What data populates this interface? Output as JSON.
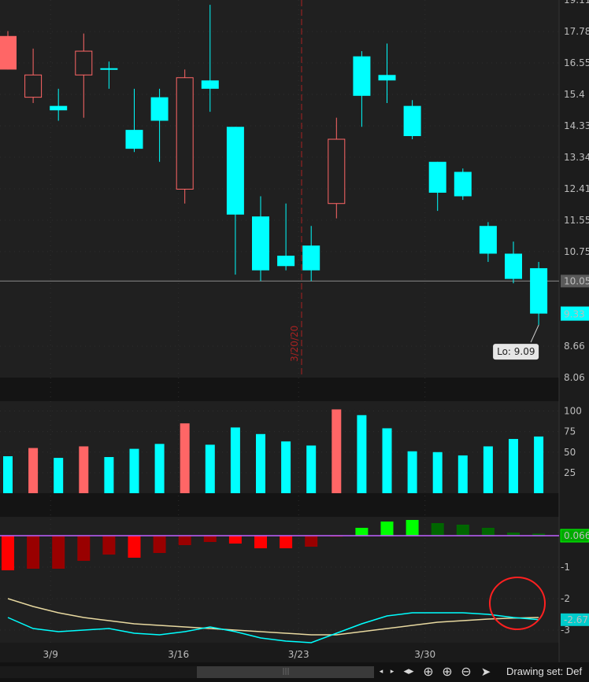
{
  "colors": {
    "up": "#00ffff",
    "down": "#ff6666",
    "hist_down": "#ff0000",
    "hist_down_dark": "#990000",
    "hist_up": "#00cc00",
    "hist_up_bright": "#00ff00",
    "hist_up_dark": "#006600",
    "macd_line": "#00ffff",
    "signal_line": "#e8d9a0",
    "zero_line": "#c060ff",
    "annotation": "#ff2020",
    "marker": "#aa2222"
  },
  "chart_data": [
    {
      "type": "candlestick",
      "x_tick_labels": [
        "3/9",
        "3/16",
        "3/23",
        "3/30"
      ],
      "y_tick_labels": [
        "17.78",
        "16.55",
        "15.4",
        "14.33",
        "13.34",
        "12.41",
        "11.55",
        "10.75",
        "8.66"
      ],
      "ylim": [
        8.06,
        19.11
      ],
      "last_price_label": "9.33",
      "line_value_label": "10.05",
      "low_label": "Lo: 9.09",
      "low_value": 9.09,
      "vertical_marker_label": "3/20/20",
      "candles": [
        {
          "o": 17.6,
          "h": 17.8,
          "l": 16.3,
          "c": 16.3,
          "up": false,
          "solid": true
        },
        {
          "o": 16.1,
          "h": 17.1,
          "l": 15.1,
          "c": 15.3,
          "up": false,
          "solid": false
        },
        {
          "o": 14.85,
          "h": 15.6,
          "l": 14.5,
          "c": 15.0,
          "up": true,
          "solid": true
        },
        {
          "o": 16.1,
          "h": 17.7,
          "l": 14.6,
          "c": 17.0,
          "up": false,
          "solid": false
        },
        {
          "o": 16.35,
          "h": 16.6,
          "l": 15.6,
          "c": 16.35,
          "up": true,
          "solid": true
        },
        {
          "o": 13.6,
          "h": 15.6,
          "l": 13.5,
          "c": 14.2,
          "up": true,
          "solid": true
        },
        {
          "o": 14.5,
          "h": 15.6,
          "l": 13.2,
          "c": 15.3,
          "up": true,
          "solid": true
        },
        {
          "o": 16.0,
          "h": 16.3,
          "l": 12.0,
          "c": 12.4,
          "up": false,
          "solid": false
        },
        {
          "o": 15.6,
          "h": 18.9,
          "l": 14.8,
          "c": 15.9,
          "up": true,
          "solid": true
        },
        {
          "o": 14.3,
          "h": 14.3,
          "l": 10.2,
          "c": 11.7,
          "up": true,
          "solid": true
        },
        {
          "o": 10.3,
          "h": 12.2,
          "l": 10.05,
          "c": 11.65,
          "up": true,
          "solid": true
        },
        {
          "o": 10.4,
          "h": 12.0,
          "l": 10.3,
          "c": 10.65,
          "up": true,
          "solid": true
        },
        {
          "o": 10.3,
          "h": 11.4,
          "l": 10.05,
          "c": 10.9,
          "up": true,
          "solid": true
        },
        {
          "o": 12.0,
          "h": 14.6,
          "l": 11.6,
          "c": 13.9,
          "up": false,
          "solid": false
        },
        {
          "o": 15.35,
          "h": 17.0,
          "l": 14.3,
          "c": 16.8,
          "up": true,
          "solid": true
        },
        {
          "o": 15.9,
          "h": 17.3,
          "l": 15.1,
          "c": 16.1,
          "up": true,
          "solid": true
        },
        {
          "o": 14.0,
          "h": 15.2,
          "l": 13.9,
          "c": 15.0,
          "up": true,
          "solid": true
        },
        {
          "o": 12.3,
          "h": 13.2,
          "l": 11.8,
          "c": 13.2,
          "up": true,
          "solid": true
        },
        {
          "o": 12.2,
          "h": 13.0,
          "l": 12.1,
          "c": 12.9,
          "up": true,
          "solid": true
        },
        {
          "o": 10.7,
          "h": 11.5,
          "l": 10.5,
          "c": 11.4,
          "up": true,
          "solid": true
        },
        {
          "o": 10.1,
          "h": 11.0,
          "l": 10.0,
          "c": 10.7,
          "up": true,
          "solid": true
        },
        {
          "o": 9.33,
          "h": 10.5,
          "l": 9.09,
          "c": 10.35,
          "up": true,
          "solid": true
        }
      ]
    },
    {
      "type": "bar",
      "y_tick_labels": [
        "100",
        "75",
        "50",
        "25"
      ],
      "ylim": [
        0,
        112
      ],
      "values": [
        45,
        55,
        43,
        57,
        44,
        54,
        60,
        85,
        59,
        80,
        72,
        63,
        58,
        102,
        95,
        79,
        51,
        50,
        46,
        57,
        66,
        69
      ],
      "up": [
        true,
        false,
        true,
        false,
        true,
        true,
        true,
        false,
        true,
        true,
        true,
        true,
        true,
        false,
        true,
        true,
        true,
        true,
        true,
        true,
        true,
        true
      ]
    },
    {
      "type": "macd",
      "y_tick_labels": [
        "-1",
        "-2",
        "-3"
      ],
      "value_label": "0.066",
      "macd_value_label": "-2.67",
      "ylim": [
        -3.4,
        0.6
      ],
      "histogram": [
        -1.1,
        -1.05,
        -1.05,
        -0.8,
        -0.6,
        -0.7,
        -0.55,
        -0.3,
        -0.2,
        -0.25,
        -0.4,
        -0.4,
        -0.35,
        -0.03,
        0.25,
        0.45,
        0.5,
        0.4,
        0.35,
        0.25,
        0.1,
        0.066
      ],
      "histogram_color": [
        "hist_down",
        "hist_down_dark",
        "hist_down_dark",
        "hist_down_dark",
        "hist_down_dark",
        "hist_down",
        "hist_down_dark",
        "hist_down_dark",
        "hist_down_dark",
        "hist_down",
        "hist_down",
        "hist_down",
        "hist_down_dark",
        "hist_down_dark",
        "hist_up_bright",
        "hist_up_bright",
        "hist_up_bright",
        "hist_up_dark",
        "hist_up_dark",
        "hist_up_dark",
        "hist_up_dark",
        "hist_up_dark"
      ],
      "macd": [
        -2.6,
        -2.95,
        -3.05,
        -3.0,
        -2.95,
        -3.1,
        -3.15,
        -3.05,
        -2.9,
        -3.05,
        -3.25,
        -3.35,
        -3.4,
        -3.1,
        -2.8,
        -2.55,
        -2.45,
        -2.45,
        -2.45,
        -2.5,
        -2.6,
        -2.67
      ],
      "signal": [
        -2.0,
        -2.25,
        -2.45,
        -2.6,
        -2.7,
        -2.8,
        -2.85,
        -2.9,
        -2.95,
        -3.0,
        -3.05,
        -3.1,
        -3.15,
        -3.15,
        -3.05,
        -2.95,
        -2.85,
        -2.75,
        -2.7,
        -2.65,
        -2.62,
        -2.6
      ]
    }
  ],
  "footer": {
    "drawing_set_label": "Drawing set: Def"
  }
}
